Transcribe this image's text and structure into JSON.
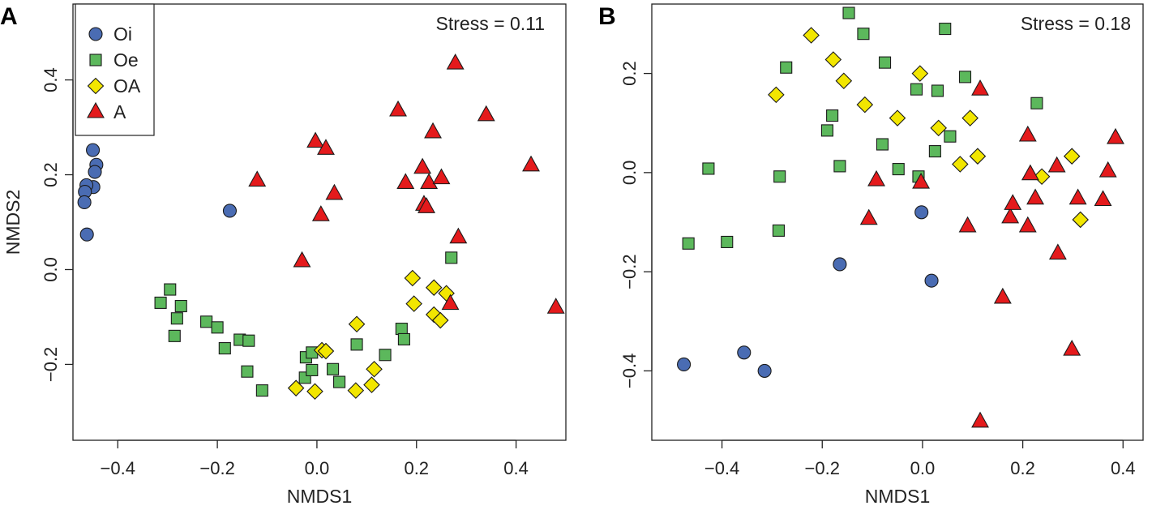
{
  "chart_data": [
    {
      "type": "scatter",
      "panel_label": "A",
      "xlabel": "NMDS1",
      "ylabel": "NMDS2",
      "annotation": "Stress = 0.11",
      "xlim": [
        -0.49,
        0.5
      ],
      "ylim": [
        -0.36,
        0.56
      ],
      "xticks": [
        -0.4,
        -0.2,
        0.0,
        0.2,
        0.4
      ],
      "xtick_labels": [
        "−0.4",
        "−0.2",
        "0.0",
        "0.2",
        "0.4"
      ],
      "yticks": [
        -0.2,
        0.0,
        0.2,
        0.4
      ],
      "ytick_labels": [
        "−0.2",
        "0.0",
        "0.2",
        "0.4"
      ],
      "legend_position": "top-left",
      "series": [
        {
          "name": "Oi",
          "shape": "circle",
          "color": "#4a6cb3",
          "x": [
            -0.45,
            -0.443,
            -0.446,
            -0.449,
            -0.463,
            -0.466,
            -0.467,
            -0.462,
            -0.175
          ],
          "y": [
            0.252,
            0.221,
            0.206,
            0.174,
            0.178,
            0.164,
            0.142,
            0.074,
            0.124
          ]
        },
        {
          "name": "Oe",
          "shape": "square",
          "color": "#5cb85c",
          "x": [
            -0.314,
            -0.295,
            -0.286,
            -0.281,
            -0.273,
            -0.222,
            -0.2,
            -0.185,
            -0.155,
            -0.14,
            -0.137,
            -0.11,
            -0.024,
            -0.022,
            -0.01,
            -0.01,
            0.032,
            0.045,
            0.08,
            0.137,
            0.17,
            0.175,
            0.27
          ],
          "y": [
            -0.07,
            -0.042,
            -0.14,
            -0.103,
            -0.077,
            -0.11,
            -0.122,
            -0.166,
            -0.148,
            -0.215,
            -0.15,
            -0.255,
            -0.228,
            -0.185,
            -0.175,
            -0.212,
            -0.21,
            -0.237,
            -0.158,
            -0.18,
            -0.125,
            -0.147,
            0.025
          ]
        },
        {
          "name": "OA",
          "shape": "diamond",
          "color": "#f2e600",
          "x": [
            -0.042,
            -0.004,
            0.01,
            0.018,
            0.078,
            0.08,
            0.11,
            0.115,
            0.192,
            0.195,
            0.235,
            0.235,
            0.248,
            0.26
          ],
          "y": [
            -0.25,
            -0.257,
            -0.17,
            -0.172,
            -0.255,
            -0.115,
            -0.243,
            -0.21,
            -0.018,
            -0.072,
            -0.038,
            -0.095,
            -0.107,
            -0.05
          ]
        },
        {
          "name": "A",
          "shape": "triangle",
          "color": "#e41a1c",
          "x": [
            -0.12,
            -0.03,
            -0.003,
            0.008,
            0.018,
            0.035,
            0.163,
            0.178,
            0.212,
            0.215,
            0.22,
            0.225,
            0.233,
            0.25,
            0.268,
            0.278,
            0.284,
            0.34,
            0.43,
            0.48
          ],
          "y": [
            0.188,
            0.018,
            0.27,
            0.115,
            0.255,
            0.16,
            0.336,
            0.183,
            0.215,
            0.137,
            0.132,
            0.183,
            0.29,
            0.193,
            -0.072,
            0.435,
            0.068,
            0.326,
            0.22,
            -0.08
          ]
        }
      ]
    },
    {
      "type": "scatter",
      "panel_label": "B",
      "xlabel": "NMDS1",
      "ylabel": "",
      "annotation": "Stress = 0.18",
      "xlim": [
        -0.54,
        0.44
      ],
      "ylim": [
        -0.54,
        0.34
      ],
      "xticks": [
        -0.4,
        -0.2,
        0.0,
        0.2,
        0.4
      ],
      "xtick_labels": [
        "−0.4",
        "−0.2",
        "0.0",
        "0.2",
        "0.4"
      ],
      "yticks": [
        -0.4,
        -0.2,
        0.0,
        0.2
      ],
      "ytick_labels": [
        "−0.4",
        "−0.2",
        "0.0",
        "0.2"
      ],
      "series": [
        {
          "name": "Oi",
          "shape": "circle",
          "color": "#4a6cb3",
          "x": [
            -0.476,
            -0.356,
            -0.315,
            -0.165,
            -0.002,
            0.018
          ],
          "y": [
            -0.387,
            -0.363,
            -0.4,
            -0.185,
            -0.08,
            -0.218
          ]
        },
        {
          "name": "Oe",
          "shape": "square",
          "color": "#5cb85c",
          "x": [
            -0.467,
            -0.427,
            -0.39,
            -0.287,
            -0.285,
            -0.272,
            -0.19,
            -0.18,
            -0.165,
            -0.147,
            -0.118,
            -0.08,
            -0.075,
            -0.048,
            -0.012,
            -0.008,
            0.025,
            0.03,
            0.045,
            0.055,
            0.085,
            0.228
          ],
          "y": [
            -0.143,
            0.008,
            -0.14,
            -0.117,
            -0.008,
            0.212,
            0.085,
            0.115,
            0.013,
            0.322,
            0.28,
            0.057,
            0.222,
            0.007,
            0.168,
            -0.008,
            0.043,
            0.165,
            0.29,
            0.073,
            0.193,
            0.14
          ]
        },
        {
          "name": "OA",
          "shape": "diamond",
          "color": "#f2e600",
          "x": [
            -0.292,
            -0.222,
            -0.178,
            -0.157,
            -0.115,
            -0.05,
            -0.005,
            0.032,
            0.075,
            0.095,
            0.11,
            0.238,
            0.298,
            0.315
          ],
          "y": [
            0.157,
            0.277,
            0.228,
            0.185,
            0.137,
            0.11,
            0.2,
            0.09,
            0.017,
            0.11,
            0.033,
            -0.008,
            0.033,
            -0.095
          ]
        },
        {
          "name": "A",
          "shape": "triangle",
          "color": "#e41a1c",
          "x": [
            -0.107,
            -0.092,
            -0.003,
            0.09,
            0.115,
            0.115,
            0.16,
            0.175,
            0.18,
            0.21,
            0.21,
            0.215,
            0.225,
            0.268,
            0.27,
            0.298,
            0.31,
            0.36,
            0.37,
            0.385
          ],
          "y": [
            -0.093,
            -0.015,
            -0.02,
            -0.108,
            -0.502,
            0.168,
            -0.252,
            -0.09,
            -0.063,
            0.075,
            -0.108,
            -0.003,
            -0.052,
            0.013,
            -0.163,
            -0.357,
            -0.052,
            -0.055,
            0.003,
            0.07
          ]
        }
      ]
    }
  ]
}
